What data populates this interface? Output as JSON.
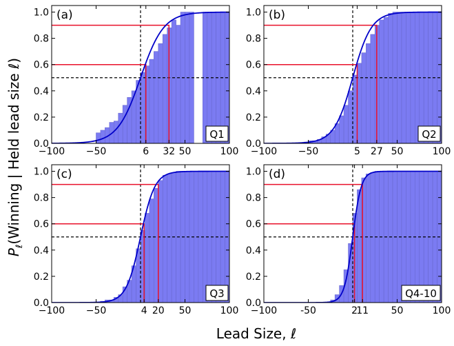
{
  "figure": {
    "ylabel_prefix": "P",
    "ylabel_sub": "ℓ",
    "ylabel_text": "(Winning | Held lead size ℓ)",
    "xlabel": "Lead Size, ℓ"
  },
  "chart_data": [
    {
      "type": "bar",
      "panel": "(a)",
      "quarter": "Q1",
      "xlim": [
        -100,
        100
      ],
      "ylim": [
        0,
        1.05
      ],
      "yticks": [
        0.0,
        0.2,
        0.4,
        0.6,
        0.8,
        1.0
      ],
      "ytick_labels": [
        "0.0",
        "0.2",
        "0.4",
        "0.6",
        "0.8",
        "1.0"
      ],
      "xticks": [
        -100,
        -50,
        6,
        32,
        50,
        100
      ],
      "xtick_labels": [
        "−100",
        "−50",
        "6",
        "32",
        "50",
        "100"
      ],
      "bar_width": 5,
      "bins": [
        {
          "x": -50,
          "y": 0.08
        },
        {
          "x": -45,
          "y": 0.1
        },
        {
          "x": -40,
          "y": 0.12
        },
        {
          "x": -35,
          "y": 0.16
        },
        {
          "x": -30,
          "y": 0.17
        },
        {
          "x": -25,
          "y": 0.23
        },
        {
          "x": -20,
          "y": 0.29
        },
        {
          "x": -15,
          "y": 0.35
        },
        {
          "x": -10,
          "y": 0.4
        },
        {
          "x": -5,
          "y": 0.48
        },
        {
          "x": 0,
          "y": 0.54
        },
        {
          "x": 5,
          "y": 0.59
        },
        {
          "x": 10,
          "y": 0.64
        },
        {
          "x": 15,
          "y": 0.7
        },
        {
          "x": 20,
          "y": 0.76
        },
        {
          "x": 25,
          "y": 0.83
        },
        {
          "x": 30,
          "y": 0.88
        },
        {
          "x": 35,
          "y": 0.94
        },
        {
          "x": 40,
          "y": 0.9
        },
        {
          "x": 45,
          "y": 1.0
        },
        {
          "x": 50,
          "y": 1.0
        },
        {
          "x": 55,
          "y": 1.0
        },
        {
          "x": 70,
          "y": 1.0
        },
        {
          "x": 75,
          "y": 1.0
        },
        {
          "x": 80,
          "y": 1.0
        },
        {
          "x": 85,
          "y": 1.0
        },
        {
          "x": 90,
          "y": 1.0
        },
        {
          "x": 95,
          "y": 1.0
        }
      ],
      "curve": {
        "type": "logistic",
        "midpoint": 0,
        "scale": 13
      },
      "thresholds": [
        {
          "level": 0.6,
          "lead": 6
        },
        {
          "level": 0.9,
          "lead": 32
        }
      ],
      "dashed_vertical_x": 0,
      "dashed_horizontal_y": 0.5
    },
    {
      "type": "bar",
      "panel": "(b)",
      "quarter": "Q2",
      "xlim": [
        -100,
        100
      ],
      "ylim": [
        0,
        1.05
      ],
      "yticks": [
        0.0,
        0.2,
        0.4,
        0.6,
        0.8,
        1.0
      ],
      "ytick_labels": [
        "0.0",
        "0.2",
        "0.4",
        "0.6",
        "0.8",
        "1.0"
      ],
      "xticks": [
        -100,
        -50,
        5,
        27,
        50,
        100
      ],
      "xtick_labels": [
        "−100",
        "−50",
        "5",
        "27",
        "50",
        "100"
      ],
      "bar_width": 5,
      "bins": [
        {
          "x": -55,
          "y": 0.01
        },
        {
          "x": -50,
          "y": 0.02
        },
        {
          "x": -45,
          "y": 0.02
        },
        {
          "x": -40,
          "y": 0.03
        },
        {
          "x": -35,
          "y": 0.05
        },
        {
          "x": -30,
          "y": 0.07
        },
        {
          "x": -25,
          "y": 0.1
        },
        {
          "x": -20,
          "y": 0.15
        },
        {
          "x": -15,
          "y": 0.21
        },
        {
          "x": -10,
          "y": 0.29
        },
        {
          "x": -5,
          "y": 0.4
        },
        {
          "x": 0,
          "y": 0.52
        },
        {
          "x": 5,
          "y": 0.61
        },
        {
          "x": 10,
          "y": 0.69
        },
        {
          "x": 15,
          "y": 0.76
        },
        {
          "x": 20,
          "y": 0.83
        },
        {
          "x": 25,
          "y": 0.9
        },
        {
          "x": 30,
          "y": 0.94
        },
        {
          "x": 35,
          "y": 0.96
        },
        {
          "x": 40,
          "y": 0.99
        },
        {
          "x": 45,
          "y": 1.0
        },
        {
          "x": 50,
          "y": 1.0
        },
        {
          "x": 55,
          "y": 1.0
        },
        {
          "x": 60,
          "y": 1.0
        },
        {
          "x": 65,
          "y": 1.0
        },
        {
          "x": 70,
          "y": 1.0
        },
        {
          "x": 75,
          "y": 1.0
        },
        {
          "x": 80,
          "y": 1.0
        },
        {
          "x": 85,
          "y": 1.0
        },
        {
          "x": 90,
          "y": 1.0
        },
        {
          "x": 95,
          "y": 1.0
        }
      ],
      "curve": {
        "type": "logistic",
        "midpoint": 0,
        "scale": 10.5
      },
      "thresholds": [
        {
          "level": 0.6,
          "lead": 5
        },
        {
          "level": 0.9,
          "lead": 27
        }
      ],
      "dashed_vertical_x": 0,
      "dashed_horizontal_y": 0.5
    },
    {
      "type": "bar",
      "panel": "(c)",
      "quarter": "Q3",
      "xlim": [
        -100,
        100
      ],
      "ylim": [
        0,
        1.05
      ],
      "yticks": [
        0.0,
        0.2,
        0.4,
        0.6,
        0.8,
        1.0
      ],
      "ytick_labels": [
        "0.0",
        "0.2",
        "0.4",
        "0.6",
        "0.8",
        "1.0"
      ],
      "xticks": [
        -100,
        -50,
        4,
        20,
        50,
        100
      ],
      "xtick_labels": [
        "−100",
        "−50",
        "4",
        "20",
        "50",
        "100"
      ],
      "bar_width": 5,
      "bins": [
        {
          "x": -45,
          "y": 0.01
        },
        {
          "x": -40,
          "y": 0.02
        },
        {
          "x": -35,
          "y": 0.02
        },
        {
          "x": -30,
          "y": 0.04
        },
        {
          "x": -25,
          "y": 0.06
        },
        {
          "x": -20,
          "y": 0.12
        },
        {
          "x": -15,
          "y": 0.17
        },
        {
          "x": -10,
          "y": 0.28
        },
        {
          "x": -5,
          "y": 0.41
        },
        {
          "x": 0,
          "y": 0.55
        },
        {
          "x": 5,
          "y": 0.68
        },
        {
          "x": 10,
          "y": 0.79
        },
        {
          "x": 15,
          "y": 0.87
        },
        {
          "x": 20,
          "y": 0.93
        },
        {
          "x": 25,
          "y": 0.97
        },
        {
          "x": 30,
          "y": 0.98
        },
        {
          "x": 35,
          "y": 0.99
        },
        {
          "x": 40,
          "y": 1.0
        },
        {
          "x": 45,
          "y": 1.0
        },
        {
          "x": 50,
          "y": 1.0
        },
        {
          "x": 55,
          "y": 1.0
        },
        {
          "x": 60,
          "y": 1.0
        },
        {
          "x": 65,
          "y": 1.0
        },
        {
          "x": 70,
          "y": 1.0
        },
        {
          "x": 75,
          "y": 1.0
        },
        {
          "x": 80,
          "y": 1.0
        },
        {
          "x": 85,
          "y": 1.0
        },
        {
          "x": 90,
          "y": 1.0
        },
        {
          "x": 95,
          "y": 1.0
        }
      ],
      "curve": {
        "type": "logistic",
        "midpoint": 0,
        "scale": 8
      },
      "thresholds": [
        {
          "level": 0.6,
          "lead": 4
        },
        {
          "level": 0.9,
          "lead": 20
        }
      ],
      "dashed_vertical_x": 0,
      "dashed_horizontal_y": 0.5
    },
    {
      "type": "bar",
      "panel": "(d)",
      "quarter": "Q4-10",
      "xlim": [
        -100,
        100
      ],
      "ylim": [
        0,
        1.05
      ],
      "yticks": [
        0.0,
        0.2,
        0.4,
        0.6,
        0.8,
        1.0
      ],
      "ytick_labels": [
        "0.0",
        "0.2",
        "0.4",
        "0.6",
        "0.8",
        "1.0"
      ],
      "xticks": [
        -100,
        -50,
        2,
        11,
        50,
        100
      ],
      "xtick_labels": [
        "−100",
        "-50",
        "2",
        "11",
        "50",
        "100"
      ],
      "bar_width": 5,
      "bins": [
        {
          "x": -25,
          "y": 0.02
        },
        {
          "x": -20,
          "y": 0.06
        },
        {
          "x": -15,
          "y": 0.13
        },
        {
          "x": -10,
          "y": 0.25
        },
        {
          "x": -5,
          "y": 0.45
        },
        {
          "x": 0,
          "y": 0.68
        },
        {
          "x": 5,
          "y": 0.86
        },
        {
          "x": 10,
          "y": 0.95
        },
        {
          "x": 15,
          "y": 0.98
        },
        {
          "x": 20,
          "y": 0.99
        },
        {
          "x": 25,
          "y": 1.0
        },
        {
          "x": 30,
          "y": 1.0
        },
        {
          "x": 35,
          "y": 1.0
        },
        {
          "x": 40,
          "y": 1.0
        },
        {
          "x": 45,
          "y": 1.0
        },
        {
          "x": 50,
          "y": 1.0
        },
        {
          "x": 55,
          "y": 1.0
        },
        {
          "x": 60,
          "y": 1.0
        },
        {
          "x": 65,
          "y": 1.0
        },
        {
          "x": 70,
          "y": 1.0
        },
        {
          "x": 75,
          "y": 1.0
        },
        {
          "x": 80,
          "y": 1.0
        },
        {
          "x": 85,
          "y": 1.0
        },
        {
          "x": 90,
          "y": 1.0
        },
        {
          "x": 95,
          "y": 1.0
        }
      ],
      "curve": {
        "type": "logistic",
        "midpoint": 0,
        "scale": 4.8
      },
      "thresholds": [
        {
          "level": 0.6,
          "lead": 2
        },
        {
          "level": 0.9,
          "lead": 11
        }
      ],
      "dashed_vertical_x": 0,
      "dashed_horizontal_y": 0.5
    }
  ],
  "colors": {
    "bar_fill": "#7b7bf2",
    "bar_edge": "#6a6ad0",
    "curve": "#0000c8",
    "threshold": "#e8102a",
    "dashed": "#000000"
  }
}
